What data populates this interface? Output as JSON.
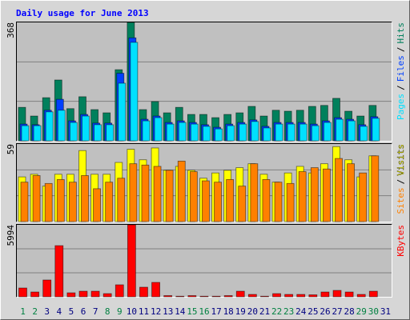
{
  "title": "Daily usage for June 2013",
  "legend_separator": "/",
  "chart_data": [
    {
      "type": "bar",
      "ylim": [
        0,
        368
      ],
      "yticks": [
        368
      ],
      "grid_divisions": 3,
      "series": [
        {
          "name": "Hits",
          "color": "#00805c",
          "values": [
            104,
            77,
            134,
            189,
            100,
            137,
            97,
            87,
            221,
            368,
            97,
            122,
            87,
            104,
            82,
            82,
            72,
            82,
            87,
            107,
            77,
            95,
            92,
            95,
            107,
            110,
            132,
            92,
            77,
            110,
            0
          ]
        },
        {
          "name": "Files",
          "color": "#0040ff",
          "values": [
            52,
            50,
            95,
            129,
            62,
            82,
            55,
            55,
            210,
            320,
            67,
            77,
            57,
            62,
            57,
            50,
            42,
            52,
            57,
            65,
            45,
            57,
            57,
            57,
            52,
            62,
            72,
            67,
            50,
            75,
            0
          ]
        },
        {
          "name": "Pages",
          "color": "#00e0ff",
          "values": [
            47,
            47,
            90,
            95,
            57,
            77,
            50,
            50,
            179,
            306,
            62,
            72,
            52,
            57,
            52,
            45,
            37,
            47,
            52,
            60,
            40,
            52,
            52,
            52,
            47,
            57,
            67,
            62,
            45,
            70,
            0
          ]
        }
      ]
    },
    {
      "type": "bar",
      "ylim": [
        0,
        59
      ],
      "yticks": [
        59
      ],
      "grid_divisions": 3,
      "series": [
        {
          "name": "Visits",
          "color": "#ffff00",
          "values": [
            34,
            36,
            27,
            36,
            36,
            54,
            36,
            36,
            45,
            55,
            47,
            56,
            39,
            42,
            39,
            33,
            37,
            39,
            41,
            44,
            36,
            30,
            37,
            42,
            37,
            44,
            57,
            47,
            34,
            50,
            0
          ]
        },
        {
          "name": "Sites",
          "color": "#ff8000",
          "values": [
            30,
            35,
            29,
            32,
            30,
            35,
            25,
            30,
            33,
            44,
            43,
            42,
            39,
            46,
            38,
            31,
            30,
            32,
            27,
            44,
            32,
            30,
            29,
            38,
            41,
            40,
            48,
            44,
            37,
            50,
            0
          ]
        }
      ]
    },
    {
      "type": "bar",
      "ylim": [
        0,
        5994
      ],
      "yticks": [
        5994
      ],
      "grid_divisions": 3,
      "categories": [
        "1",
        "2",
        "3",
        "4",
        "5",
        "6",
        "7",
        "8",
        "9",
        "10",
        "11",
        "12",
        "13",
        "14",
        "15",
        "16",
        "17",
        "18",
        "19",
        "20",
        "21",
        "22",
        "23",
        "24",
        "25",
        "26",
        "27",
        "28",
        "29",
        "30",
        "31"
      ],
      "category_colors": [
        "#008040",
        "#008040",
        "#000080",
        "#000080",
        "#000080",
        "#000080",
        "#000080",
        "#008040",
        "#008040",
        "#000080",
        "#000080",
        "#000080",
        "#000080",
        "#000080",
        "#008040",
        "#008040",
        "#000080",
        "#000080",
        "#000080",
        "#000080",
        "#000080",
        "#008040",
        "#008040",
        "#000080",
        "#000080",
        "#000080",
        "#000080",
        "#000080",
        "#008040",
        "#008040",
        "#000080"
      ],
      "series": [
        {
          "name": "KBytes",
          "color": "#ff0000",
          "values": [
            733,
            400,
            1400,
            4260,
            333,
            466,
            466,
            266,
            1000,
            5994,
            800,
            1200,
            100,
            50,
            100,
            50,
            50,
            100,
            466,
            200,
            50,
            266,
            200,
            200,
            166,
            400,
            533,
            400,
            200,
            466,
            0
          ]
        }
      ]
    }
  ]
}
